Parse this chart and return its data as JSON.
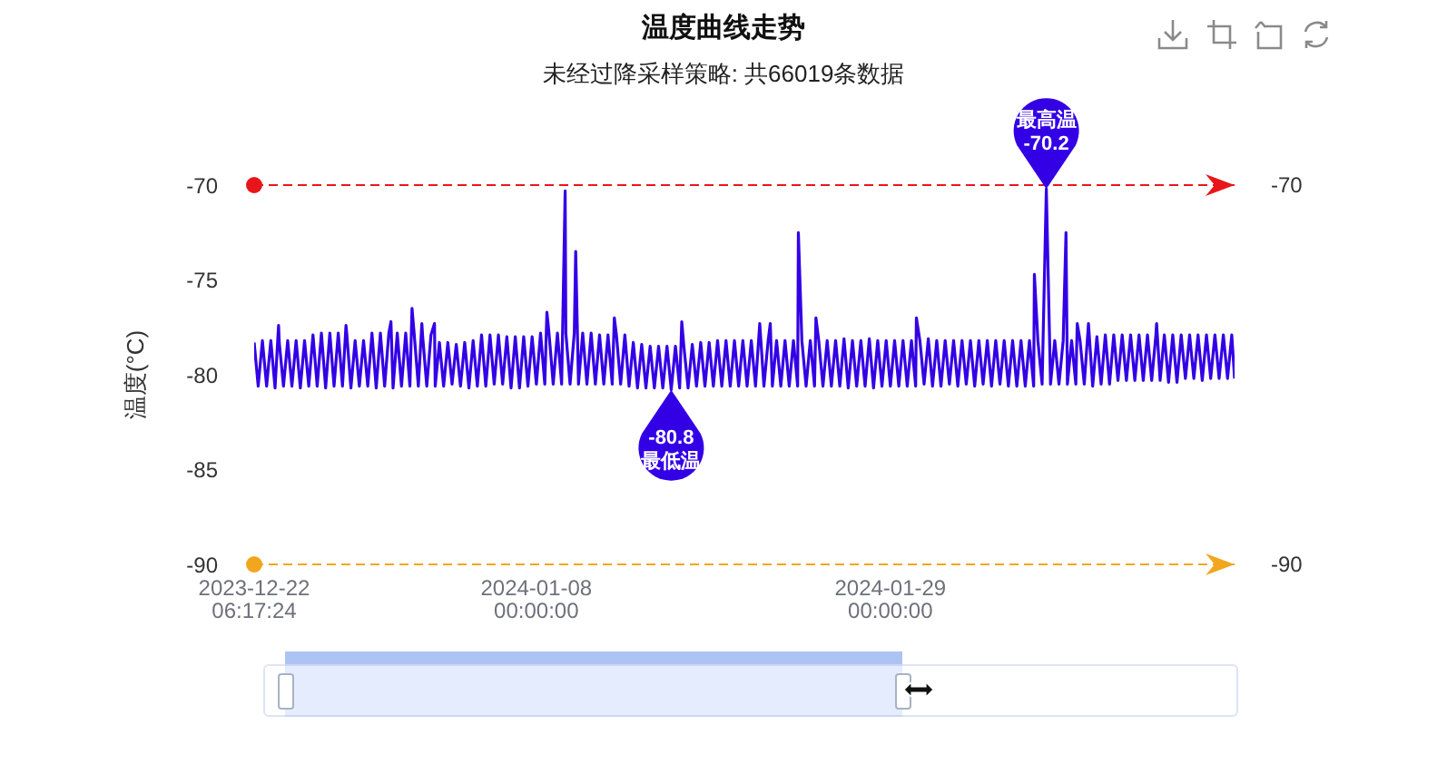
{
  "chart_data": {
    "type": "line",
    "title": "温度曲线走势",
    "subtitle": "未经过降采样策略: 共66019条数据",
    "ylabel": "温度(°C)",
    "color": "#3300e6",
    "x": [
      "2023-12-22T06:17:24",
      "2023-12-22T12:00",
      "2023-12-22T18:00",
      "2023-12-23T00:00",
      "2023-12-23T06:00",
      "2023-12-23T12:00",
      "2023-12-23T17:00",
      "2023-12-23T18:00",
      "2023-12-24T00:00",
      "2023-12-24T06:00",
      "2023-12-24T12:00",
      "2023-12-24T18:00",
      "2023-12-25T00:00",
      "2023-12-25T06:00",
      "2023-12-25T12:00",
      "2023-12-25T18:00",
      "2023-12-26T00:00",
      "2023-12-26T06:00",
      "2023-12-26T12:00",
      "2023-12-26T18:00",
      "2023-12-27T00:00",
      "2023-12-27T06:00",
      "2023-12-27T12:00",
      "2023-12-27T17:00",
      "2023-12-27T18:00",
      "2023-12-28T00:00",
      "2023-12-28T06:00",
      "2023-12-28T12:00",
      "2023-12-28T18:00",
      "2023-12-29T00:00",
      "2023-12-29T06:00",
      "2023-12-29T12:00",
      "2023-12-29T18:00",
      "2023-12-30T00:00",
      "2023-12-30T06:00",
      "2023-12-30T09:00",
      "2023-12-30T12:00",
      "2023-12-30T18:00",
      "2023-12-31T00:00",
      "2023-12-31T06:00",
      "2023-12-31T12:00",
      "2023-12-31T15:00",
      "2023-12-31T18:00",
      "2024-01-01T00:00",
      "2024-01-01T05:00",
      "2024-01-01T06:00",
      "2024-01-01T12:00",
      "2024-01-01T18:00",
      "2024-01-01T23:00",
      "2024-01-02T00:00",
      "2024-01-02T06:00",
      "2024-01-02T12:00",
      "2024-01-02T18:00",
      "2024-01-03T00:00",
      "2024-01-03T06:00",
      "2024-01-03T12:00",
      "2024-01-03T18:00",
      "2024-01-04T00:00",
      "2024-01-04T06:00",
      "2024-01-04T12:00",
      "2024-01-04T18:00",
      "2024-01-05T00:00",
      "2024-01-05T06:00",
      "2024-01-05T12:00",
      "2024-01-05T18:00",
      "2024-01-06T00:00",
      "2024-01-06T06:00",
      "2024-01-06T12:00",
      "2024-01-06T18:00",
      "2024-01-07T00:00",
      "2024-01-07T06:00",
      "2024-01-07T12:00",
      "2024-01-07T18:00",
      "2024-01-08T00:00",
      "2024-01-08T06:00",
      "2024-01-08T12:00",
      "2024-01-08T15:00",
      "2024-01-08T18:00",
      "2024-01-09T00:00",
      "2024-01-09T06:00",
      "2024-01-09T12:00",
      "2024-01-09T17:00",
      "2024-01-09T18:00",
      "2024-01-10T00:00",
      "2024-01-10T06:00",
      "2024-01-10T08:00",
      "2024-01-10T12:00",
      "2024-01-10T18:00",
      "2024-01-11T00:00",
      "2024-01-11T06:00",
      "2024-01-11T12:00",
      "2024-01-11T18:00",
      "2024-01-12T00:00",
      "2024-01-12T06:00",
      "2024-01-12T12:00",
      "2024-01-12T15:00",
      "2024-01-12T18:00",
      "2024-01-13T00:00",
      "2024-01-13T06:00",
      "2024-01-13T12:00",
      "2024-01-13T18:00",
      "2024-01-14T00:00",
      "2024-01-14T06:00",
      "2024-01-14T12:00",
      "2024-01-14T18:00",
      "2024-01-15T00:00",
      "2024-01-15T06:00",
      "2024-01-15T12:00",
      "2024-01-15T18:00",
      "2024-01-16T00:00",
      "2024-01-16T06:00",
      "2024-01-16T12:00",
      "2024-01-16T15:00",
      "2024-01-16T18:00",
      "2024-01-17T00:00",
      "2024-01-17T06:00",
      "2024-01-17T12:00",
      "2024-01-17T18:00",
      "2024-01-18T00:00",
      "2024-01-18T06:00",
      "2024-01-18T12:00",
      "2024-01-18T18:00",
      "2024-01-19T00:00",
      "2024-01-19T06:00",
      "2024-01-19T12:00",
      "2024-01-19T18:00",
      "2024-01-20T00:00",
      "2024-01-20T06:00",
      "2024-01-20T12:00",
      "2024-01-20T18:00",
      "2024-01-21T00:00",
      "2024-01-21T06:00",
      "2024-01-21T12:00",
      "2024-01-21T18:00",
      "2024-01-21T21:00",
      "2024-01-22T00:00",
      "2024-01-22T06:00",
      "2024-01-22T12:00",
      "2024-01-22T18:00",
      "2024-01-23T00:00",
      "2024-01-23T06:00",
      "2024-01-23T12:00",
      "2024-01-23T13:00",
      "2024-01-23T18:00",
      "2024-01-24T00:00",
      "2024-01-24T06:00",
      "2024-01-24T12:00",
      "2024-01-24T14:00",
      "2024-01-24T18:00",
      "2024-01-25T00:00",
      "2024-01-25T06:00",
      "2024-01-25T12:00",
      "2024-01-25T18:00",
      "2024-01-26T00:00",
      "2024-01-26T06:00",
      "2024-01-26T12:00",
      "2024-01-26T18:00",
      "2024-01-27T00:00",
      "2024-01-27T06:00",
      "2024-01-27T12:00",
      "2024-01-27T18:00",
      "2024-01-28T00:00",
      "2024-01-28T06:00",
      "2024-01-28T12:00",
      "2024-01-28T18:00",
      "2024-01-29T00:00",
      "2024-01-29T06:00",
      "2024-01-29T12:00",
      "2024-01-29T18:00",
      "2024-01-30T00:00",
      "2024-01-30T06:00",
      "2024-01-30T12:00",
      "2024-01-30T13:00",
      "2024-01-30T18:00",
      "2024-01-31T00:00",
      "2024-01-31T06:00",
      "2024-01-31T12:00",
      "2024-01-31T18:00",
      "2024-02-01T00:00",
      "2024-02-01T06:00",
      "2024-02-01T12:00",
      "2024-02-01T18:00",
      "2024-02-02T00:00",
      "2024-02-02T06:00",
      "2024-02-02T12:00",
      "2024-02-02T18:00",
      "2024-02-03T00:00",
      "2024-02-03T06:00",
      "2024-02-03T12:00",
      "2024-02-03T18:00",
      "2024-02-04T00:00",
      "2024-02-04T06:00",
      "2024-02-04T12:00",
      "2024-02-04T18:00",
      "2024-02-05T00:00",
      "2024-02-05T06:00",
      "2024-02-05T12:00",
      "2024-02-05T18:00",
      "2024-02-06T00:00",
      "2024-02-06T06:00",
      "2024-02-06T12:00",
      "2024-02-06T13:00",
      "2024-02-06T18:00",
      "2024-02-07T00:00",
      "2024-02-07T06:00",
      "2024-02-07T12:00",
      "2024-02-07T18:00",
      "2024-02-08T00:00",
      "2024-02-08T06:00",
      "2024-02-08T10:00",
      "2024-02-08T12:00",
      "2024-02-08T18:00",
      "2024-02-09T00:00",
      "2024-02-09T02:00",
      "2024-02-09T06:00",
      "2024-02-09T12:00",
      "2024-02-09T18:00",
      "2024-02-10T00:00",
      "2024-02-10T06:00",
      "2024-02-10T12:00",
      "2024-02-10T18:00",
      "2024-02-11T00:00",
      "2024-02-11T06:00",
      "2024-02-11T12:00",
      "2024-02-11T18:00",
      "2024-02-12T00:00",
      "2024-02-12T06:00",
      "2024-02-12T12:00",
      "2024-02-12T18:00",
      "2024-02-13T00:00",
      "2024-02-13T06:00",
      "2024-02-13T12:00",
      "2024-02-13T18:00",
      "2024-02-13T19:00",
      "2024-02-14T00:00",
      "2024-02-14T06:00",
      "2024-02-14T12:00",
      "2024-02-14T18:00",
      "2024-02-15T00:00",
      "2024-02-15T06:00",
      "2024-02-15T12:00",
      "2024-02-15T18:00",
      "2024-02-16T00:00",
      "2024-02-16T06:00",
      "2024-02-16T12:00",
      "2024-02-16T18:00",
      "2024-02-17T00:00",
      "2024-02-17T06:00",
      "2024-02-17T12:00",
      "2024-02-17T18:00",
      "2024-02-18T00:00",
      "2024-02-18T06:00",
      "2024-02-18T10:00"
    ],
    "values": [
      -78.3,
      -80.6,
      -78.2,
      -80.6,
      -78.2,
      -80.7,
      -77.4,
      -78.3,
      -80.6,
      -78.2,
      -80.6,
      -78.2,
      -80.7,
      -78.2,
      -80.6,
      -77.9,
      -80.6,
      -77.8,
      -80.7,
      -77.8,
      -80.6,
      -77.8,
      -80.6,
      -77.4,
      -77.8,
      -80.7,
      -78.2,
      -80.6,
      -78.2,
      -80.6,
      -77.8,
      -80.7,
      -77.8,
      -80.6,
      -77.8,
      -77.2,
      -80.7,
      -77.8,
      -80.6,
      -77.8,
      -80.6,
      -76.5,
      -77.8,
      -80.6,
      -77.3,
      -77.9,
      -80.6,
      -77.9,
      -77.3,
      -80.6,
      -78.3,
      -80.6,
      -78.3,
      -80.5,
      -78.4,
      -80.6,
      -78.3,
      -80.7,
      -78.2,
      -80.6,
      -77.9,
      -80.6,
      -77.9,
      -80.5,
      -77.9,
      -80.5,
      -78.0,
      -80.7,
      -78.0,
      -80.7,
      -78.0,
      -80.6,
      -78.0,
      -80.5,
      -77.8,
      -80.5,
      -76.7,
      -77.8,
      -80.5,
      -77.8,
      -80.5,
      -70.3,
      -77.8,
      -80.5,
      -77.8,
      -73.5,
      -80.5,
      -77.8,
      -80.5,
      -77.8,
      -80.5,
      -77.9,
      -80.5,
      -77.9,
      -80.5,
      -77.0,
      -77.9,
      -80.5,
      -77.9,
      -80.6,
      -78.3,
      -80.7,
      -78.4,
      -80.7,
      -78.5,
      -80.7,
      -78.5,
      -80.7,
      -78.5,
      -80.8,
      -78.5,
      -80.7,
      -77.2,
      -78.5,
      -80.7,
      -78.4,
      -80.6,
      -78.3,
      -80.6,
      -78.3,
      -80.6,
      -78.2,
      -80.6,
      -78.2,
      -80.6,
      -78.2,
      -80.6,
      -78.2,
      -80.6,
      -78.2,
      -80.6,
      -77.3,
      -80.6,
      -78.2,
      -77.3,
      -80.6,
      -78.2,
      -80.6,
      -78.2,
      -80.6,
      -78.2,
      -80.6,
      -72.5,
      -78.2,
      -80.6,
      -78.2,
      -80.6,
      -77.0,
      -78.2,
      -80.6,
      -78.2,
      -80.6,
      -78.2,
      -80.6,
      -78.1,
      -80.7,
      -78.2,
      -80.6,
      -78.2,
      -80.6,
      -78.1,
      -80.7,
      -78.2,
      -80.6,
      -78.2,
      -80.6,
      -78.2,
      -80.6,
      -78.2,
      -80.6,
      -78.2,
      -80.6,
      -77.0,
      -78.2,
      -80.5,
      -78.1,
      -80.6,
      -78.2,
      -80.6,
      -78.2,
      -80.5,
      -78.2,
      -80.6,
      -78.2,
      -80.5,
      -78.2,
      -80.6,
      -78.2,
      -80.5,
      -78.2,
      -80.6,
      -78.2,
      -80.5,
      -78.2,
      -80.6,
      -78.2,
      -80.6,
      -78.2,
      -80.6,
      -78.2,
      -80.6,
      -74.7,
      -78.2,
      -80.5,
      -70.2,
      -80.5,
      -78.2,
      -80.5,
      -78.2,
      -72.5,
      -80.5,
      -78.2,
      -80.5,
      -77.3,
      -78.2,
      -80.5,
      -77.3,
      -80.6,
      -78.0,
      -80.5,
      -77.9,
      -80.5,
      -77.9,
      -80.3,
      -77.9,
      -80.3,
      -77.9,
      -80.3,
      -77.9,
      -80.3,
      -77.9,
      -80.3,
      -77.9,
      -77.3,
      -80.3,
      -77.9,
      -80.4,
      -77.9,
      -80.4,
      -77.9,
      -80.2,
      -77.9,
      -80.2,
      -77.9,
      -80.3,
      -77.9,
      -80.2,
      -77.9,
      -80.2,
      -77.9,
      -80.2,
      -77.9,
      -80.2
    ],
    "xlim": [
      "2023-12-22T06:17:24",
      "2024-02-18T10:00"
    ],
    "xticks": [
      {
        "value": "2023-12-22T06:17:24",
        "label": "2023-12-22\n06:17:24"
      },
      {
        "value": "2024-01-08T00:00",
        "label": "2024-01-08\n00:00:00"
      },
      {
        "value": "2024-01-29T00:00",
        "label": "2024-01-29\n00:00:00"
      }
    ],
    "ylim": [
      -90,
      -70
    ],
    "yticks": [
      -90,
      -85,
      -80,
      -75,
      -70
    ],
    "ref_lines": [
      {
        "axis": "y",
        "value": -70,
        "label": "-70",
        "color": "#e8161b",
        "line_style": "dashed"
      },
      {
        "axis": "y",
        "value": -90,
        "label": "-90",
        "color": "#f2a61d",
        "line_style": "dashed"
      }
    ],
    "annotations": [
      {
        "text": "最高温\n-70.2",
        "x": "2024-02-07T06:00",
        "y": -70.2
      },
      {
        "text": "-80.8\n最低温",
        "x": "2024-01-16T00:00",
        "y": -80.8
      }
    ]
  }
}
